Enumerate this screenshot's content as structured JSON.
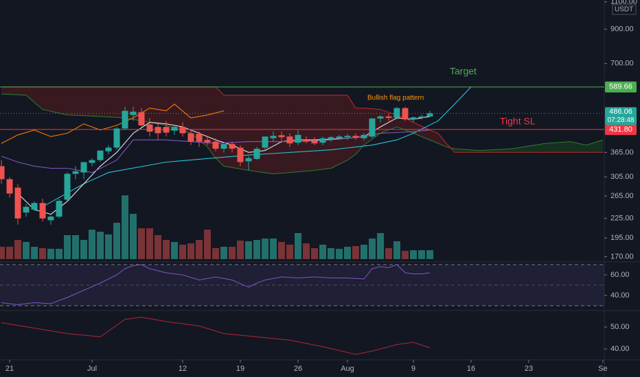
{
  "chart_data": [
    {
      "type": "candlestick",
      "x": [
        20,
        21,
        22,
        23,
        24,
        25,
        26,
        27,
        28,
        29,
        30,
        31,
        32,
        33,
        34,
        35,
        36,
        37,
        38,
        39,
        40,
        41,
        42,
        43,
        44,
        45,
        46,
        47,
        48,
        49,
        50,
        51,
        52,
        53,
        54,
        55,
        56,
        57,
        58,
        59,
        60,
        61,
        62,
        63,
        64,
        65,
        66,
        67,
        68,
        69,
        70,
        71,
        72
      ],
      "open": [
        330,
        300,
        282,
        235,
        240,
        252,
        222,
        228,
        258,
        312,
        315,
        338,
        345,
        368,
        378,
        435,
        480,
        490,
        448,
        440,
        440,
        428,
        440,
        420,
        418,
        400,
        395,
        375,
        388,
        378,
        342,
        348,
        378,
        405,
        414,
        410,
        392,
        400,
        398,
        392,
        402,
        405,
        408,
        412,
        405,
        410,
        468,
        475,
        470,
        505,
        465,
        470,
        475
      ],
      "high": [
        345,
        305,
        290,
        250,
        255,
        260,
        230,
        260,
        315,
        330,
        340,
        350,
        370,
        385,
        440,
        510,
        510,
        505,
        470,
        455,
        460,
        445,
        455,
        430,
        425,
        410,
        405,
        390,
        395,
        385,
        355,
        380,
        410,
        425,
        425,
        420,
        430,
        410,
        408,
        410,
        412,
        415,
        418,
        420,
        420,
        470,
        480,
        485,
        510,
        510,
        475,
        482,
        495
      ],
      "low": [
        290,
        262,
        215,
        228,
        238,
        220,
        215,
        225,
        255,
        300,
        300,
        330,
        340,
        360,
        372,
        430,
        460,
        440,
        410,
        400,
        410,
        415,
        410,
        385,
        380,
        385,
        368,
        365,
        365,
        330,
        320,
        345,
        370,
        395,
        392,
        380,
        385,
        390,
        385,
        385,
        395,
        400,
        400,
        400,
        398,
        405,
        455,
        460,
        465,
        460,
        455,
        465,
        472
      ],
      "close": [
        300,
        270,
        225,
        245,
        252,
        225,
        228,
        256,
        312,
        318,
        340,
        345,
        370,
        378,
        435,
        495,
        492,
        445,
        425,
        420,
        422,
        440,
        420,
        395,
        395,
        393,
        375,
        388,
        375,
        340,
        350,
        375,
        410,
        412,
        408,
        390,
        415,
        395,
        390,
        405,
        408,
        410,
        412,
        406,
        415,
        468,
        475,
        470,
        505,
        465,
        472,
        475,
        486.06
      ],
      "volume": [
        18,
        18,
        28,
        25,
        18,
        16,
        15,
        15,
        35,
        35,
        28,
        43,
        40,
        36,
        53,
        93,
        66,
        45,
        45,
        35,
        28,
        25,
        21,
        23,
        28,
        43,
        16,
        18,
        18,
        27,
        26,
        28,
        30,
        30,
        25,
        21,
        38,
        23,
        16,
        21,
        16,
        15,
        18,
        19,
        21,
        30,
        38,
        16,
        26,
        12,
        13,
        13,
        13
      ],
      "up_color": "#26a69a",
      "down_color": "#ef5350",
      "volume_up_color": "#22706b",
      "volume_down_color": "#7a3336",
      "ylim": [
        163.7,
        1115
      ],
      "log": true,
      "yticks": [
        {
          "value": 1100,
          "label": "1100.00"
        },
        {
          "value": 900,
          "label": "900.00"
        },
        {
          "value": 700,
          "label": "700.00"
        },
        {
          "value": 365,
          "label": "365.00"
        },
        {
          "value": 305,
          "label": "305.00"
        },
        {
          "value": 265,
          "label": "265.00"
        },
        {
          "value": 225,
          "label": "225.00"
        },
        {
          "value": 195,
          "label": "195.00"
        },
        {
          "value": 170,
          "label": "170.00"
        }
      ],
      "currency": "USDT",
      "xlim": [
        19.83,
        93.17
      ],
      "xticks": [
        21,
        {
          "value": 31,
          "label": "Jul"
        },
        {
          "value": 42,
          "label": "12"
        },
        {
          "value": 49,
          "label": "19"
        },
        {
          "value": 56,
          "label": "26"
        },
        {
          "value": 62,
          "label": "Aug"
        },
        {
          "value": 70,
          "label": "9"
        },
        {
          "value": 77,
          "label": "16"
        },
        {
          "value": 84,
          "label": "23"
        },
        {
          "value": 93,
          "label": "Se"
        }
      ],
      "last_price": 486.06,
      "countdown": "07:28:48",
      "levels": [
        {
          "name": "Target",
          "value": 589.66,
          "color": "#4caf50"
        },
        {
          "name": "Tight SL",
          "value": 431.8,
          "label": "431.80",
          "color": "#f23645"
        }
      ],
      "annotation": "Bullish flag pattern",
      "annotation_color": "#ff9800",
      "cloud": {
        "x": [
          20,
          23,
          25,
          28,
          30,
          32,
          35,
          40,
          43,
          45,
          46,
          47,
          50,
          53,
          55,
          58,
          60,
          62,
          63,
          64,
          66,
          67,
          68,
          69,
          70,
          72,
          73,
          74,
          75,
          78,
          82,
          86,
          89,
          91,
          93
        ],
        "span_b": [
          590,
          590,
          590,
          590,
          590,
          590,
          590,
          590,
          590,
          590,
          590,
          555,
          555,
          555,
          555,
          555,
          555,
          555,
          505,
          505,
          500,
          490,
          480,
          470,
          455,
          430,
          420,
          390,
          365,
          365,
          365,
          365,
          365,
          365,
          365
        ],
        "span_a": [
          560,
          555,
          500,
          480,
          478,
          475,
          470,
          445,
          420,
          380,
          350,
          330,
          320,
          312,
          315,
          320,
          325,
          345,
          360,
          385,
          420,
          430,
          440,
          430,
          420,
          400,
          390,
          380,
          375,
          370,
          375,
          390,
          395,
          385,
          400
        ],
        "span_a_color": "#2e7d32",
        "span_b_color": "#c62828",
        "up_fill": "#1b5e20",
        "down_fill": "#7f1d1d"
      },
      "series": [
        {
          "color": "#26c6da",
          "x": [
            25,
            30,
            33,
            40,
            50,
            60,
            65,
            68,
            70,
            73,
            75,
            77
          ],
          "values": [
            245,
            290,
            315,
            340,
            358,
            372,
            385,
            400,
            420,
            460,
            520,
            590
          ]
        },
        {
          "color": "#e0e3eb",
          "x": [
            22,
            24,
            26,
            28,
            30,
            32,
            34,
            36,
            38,
            40,
            42,
            44,
            46,
            48,
            50,
            52,
            54,
            56,
            58,
            60,
            62,
            64,
            66,
            68,
            70,
            72
          ],
          "values": [
            270,
            240,
            232,
            255,
            290,
            330,
            365,
            420,
            455,
            450,
            440,
            420,
            400,
            385,
            365,
            370,
            395,
            400,
            400,
            402,
            405,
            410,
            440,
            470,
            465,
            475
          ]
        },
        {
          "color": "#f57c00",
          "x": [
            20,
            22,
            24,
            26,
            28,
            30,
            32,
            34,
            36,
            38,
            40,
            41,
            43,
            45,
            47
          ],
          "values": [
            390,
            415,
            430,
            410,
            420,
            450,
            430,
            445,
            470,
            505,
            495,
            520,
            470,
            480,
            495
          ]
        },
        {
          "color": "#7e57c2",
          "x": [
            20,
            22,
            24,
            26,
            28,
            31,
            34,
            36,
            40,
            46,
            50,
            56,
            60,
            64,
            66,
            70,
            72
          ],
          "values": [
            355,
            340,
            330,
            325,
            325,
            315,
            345,
            400,
            400,
            390,
            395,
            395,
            400,
            410,
            420,
            425,
            430
          ]
        }
      ]
    },
    {
      "type": "line",
      "x": [
        20,
        22,
        24,
        26,
        28,
        30,
        32,
        34,
        35,
        36,
        37,
        38,
        40,
        42,
        44,
        46,
        48,
        50,
        51,
        52,
        54,
        56,
        58,
        60,
        62,
        64,
        65,
        66,
        67,
        68,
        69,
        70,
        71,
        72
      ],
      "values": [
        33,
        31,
        33,
        32,
        38,
        45,
        52,
        60,
        66,
        69,
        70,
        66,
        62,
        60,
        55,
        58,
        55,
        48,
        52,
        55,
        58,
        57,
        58,
        57,
        57,
        56,
        66,
        68,
        67,
        70,
        62,
        61,
        61,
        62
      ],
      "color": "#7e57c2",
      "band": [
        30,
        70
      ],
      "midline": 50,
      "band_color": "#7e57c2",
      "ylim": [
        26,
        72
      ],
      "yticks": [
        {
          "value": 60,
          "label": "60.00"
        },
        {
          "value": 40,
          "label": "40.00"
        }
      ]
    },
    {
      "type": "line",
      "x": [
        20,
        24,
        28,
        32,
        35,
        37,
        40,
        44,
        47,
        51,
        55,
        59,
        63,
        65,
        68,
        70,
        72
      ],
      "values": [
        52,
        49.5,
        47,
        45.5,
        53.5,
        54.5,
        52.5,
        50.5,
        47,
        45.5,
        44,
        41,
        37.5,
        39,
        42,
        43,
        40.5
      ],
      "color": "#b22833",
      "ylim": [
        35,
        56.9
      ],
      "yticks": [
        {
          "value": 50,
          "label": "50.00"
        },
        {
          "value": 40,
          "label": "40.00"
        }
      ]
    }
  ]
}
